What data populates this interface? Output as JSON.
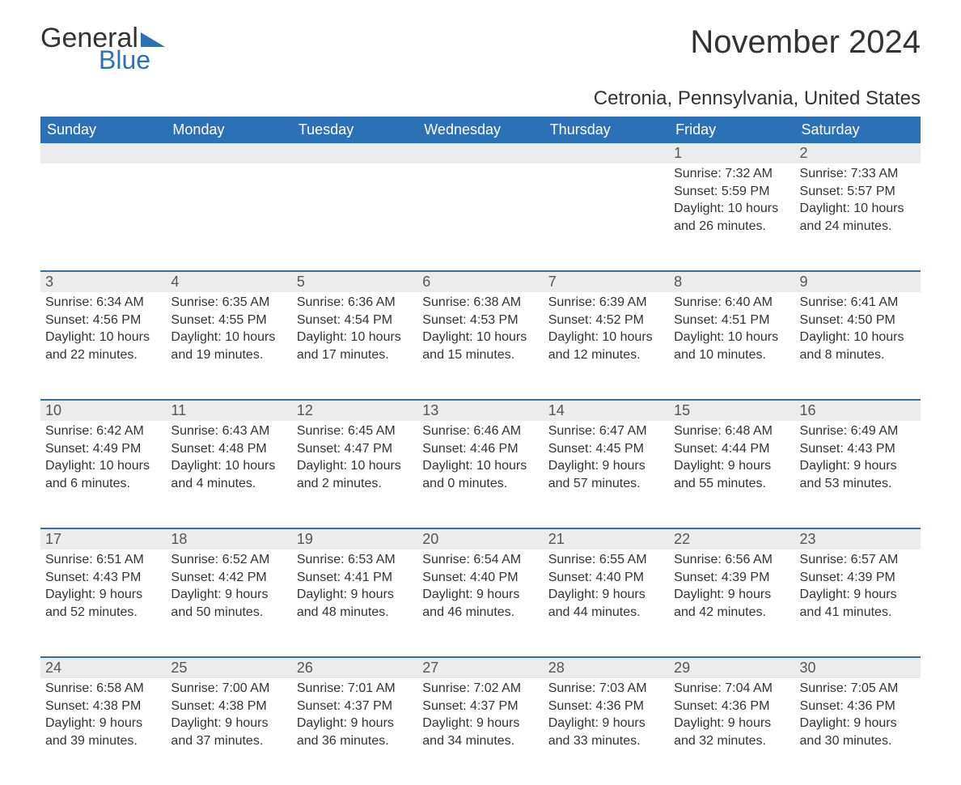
{
  "logo": {
    "text1": "General",
    "text2": "Blue",
    "tri_color": "#2a71b8"
  },
  "title": "November 2024",
  "location": "Cetronia, Pennsylvania, United States",
  "colors": {
    "header_bg": "#2a71b8",
    "header_text": "#ffffff",
    "daynum_bg": "#ececec",
    "text": "#333333",
    "border": "#2a71b8"
  },
  "font": {
    "family": "Arial",
    "title_size": 40,
    "location_size": 24,
    "header_size": 18,
    "body_size": 16
  },
  "day_names": [
    "Sunday",
    "Monday",
    "Tuesday",
    "Wednesday",
    "Thursday",
    "Friday",
    "Saturday"
  ],
  "weeks": [
    [
      {
        "empty": true
      },
      {
        "empty": true
      },
      {
        "empty": true
      },
      {
        "empty": true
      },
      {
        "empty": true
      },
      {
        "n": "1",
        "sunrise": "Sunrise: 7:32 AM",
        "sunset": "Sunset: 5:59 PM",
        "d1": "Daylight: 10 hours",
        "d2": "and 26 minutes."
      },
      {
        "n": "2",
        "sunrise": "Sunrise: 7:33 AM",
        "sunset": "Sunset: 5:57 PM",
        "d1": "Daylight: 10 hours",
        "d2": "and 24 minutes."
      }
    ],
    [
      {
        "n": "3",
        "sunrise": "Sunrise: 6:34 AM",
        "sunset": "Sunset: 4:56 PM",
        "d1": "Daylight: 10 hours",
        "d2": "and 22 minutes."
      },
      {
        "n": "4",
        "sunrise": "Sunrise: 6:35 AM",
        "sunset": "Sunset: 4:55 PM",
        "d1": "Daylight: 10 hours",
        "d2": "and 19 minutes."
      },
      {
        "n": "5",
        "sunrise": "Sunrise: 6:36 AM",
        "sunset": "Sunset: 4:54 PM",
        "d1": "Daylight: 10 hours",
        "d2": "and 17 minutes."
      },
      {
        "n": "6",
        "sunrise": "Sunrise: 6:38 AM",
        "sunset": "Sunset: 4:53 PM",
        "d1": "Daylight: 10 hours",
        "d2": "and 15 minutes."
      },
      {
        "n": "7",
        "sunrise": "Sunrise: 6:39 AM",
        "sunset": "Sunset: 4:52 PM",
        "d1": "Daylight: 10 hours",
        "d2": "and 12 minutes."
      },
      {
        "n": "8",
        "sunrise": "Sunrise: 6:40 AM",
        "sunset": "Sunset: 4:51 PM",
        "d1": "Daylight: 10 hours",
        "d2": "and 10 minutes."
      },
      {
        "n": "9",
        "sunrise": "Sunrise: 6:41 AM",
        "sunset": "Sunset: 4:50 PM",
        "d1": "Daylight: 10 hours",
        "d2": "and 8 minutes."
      }
    ],
    [
      {
        "n": "10",
        "sunrise": "Sunrise: 6:42 AM",
        "sunset": "Sunset: 4:49 PM",
        "d1": "Daylight: 10 hours",
        "d2": "and 6 minutes."
      },
      {
        "n": "11",
        "sunrise": "Sunrise: 6:43 AM",
        "sunset": "Sunset: 4:48 PM",
        "d1": "Daylight: 10 hours",
        "d2": "and 4 minutes."
      },
      {
        "n": "12",
        "sunrise": "Sunrise: 6:45 AM",
        "sunset": "Sunset: 4:47 PM",
        "d1": "Daylight: 10 hours",
        "d2": "and 2 minutes."
      },
      {
        "n": "13",
        "sunrise": "Sunrise: 6:46 AM",
        "sunset": "Sunset: 4:46 PM",
        "d1": "Daylight: 10 hours",
        "d2": "and 0 minutes."
      },
      {
        "n": "14",
        "sunrise": "Sunrise: 6:47 AM",
        "sunset": "Sunset: 4:45 PM",
        "d1": "Daylight: 9 hours",
        "d2": "and 57 minutes."
      },
      {
        "n": "15",
        "sunrise": "Sunrise: 6:48 AM",
        "sunset": "Sunset: 4:44 PM",
        "d1": "Daylight: 9 hours",
        "d2": "and 55 minutes."
      },
      {
        "n": "16",
        "sunrise": "Sunrise: 6:49 AM",
        "sunset": "Sunset: 4:43 PM",
        "d1": "Daylight: 9 hours",
        "d2": "and 53 minutes."
      }
    ],
    [
      {
        "n": "17",
        "sunrise": "Sunrise: 6:51 AM",
        "sunset": "Sunset: 4:43 PM",
        "d1": "Daylight: 9 hours",
        "d2": "and 52 minutes."
      },
      {
        "n": "18",
        "sunrise": "Sunrise: 6:52 AM",
        "sunset": "Sunset: 4:42 PM",
        "d1": "Daylight: 9 hours",
        "d2": "and 50 minutes."
      },
      {
        "n": "19",
        "sunrise": "Sunrise: 6:53 AM",
        "sunset": "Sunset: 4:41 PM",
        "d1": "Daylight: 9 hours",
        "d2": "and 48 minutes."
      },
      {
        "n": "20",
        "sunrise": "Sunrise: 6:54 AM",
        "sunset": "Sunset: 4:40 PM",
        "d1": "Daylight: 9 hours",
        "d2": "and 46 minutes."
      },
      {
        "n": "21",
        "sunrise": "Sunrise: 6:55 AM",
        "sunset": "Sunset: 4:40 PM",
        "d1": "Daylight: 9 hours",
        "d2": "and 44 minutes."
      },
      {
        "n": "22",
        "sunrise": "Sunrise: 6:56 AM",
        "sunset": "Sunset: 4:39 PM",
        "d1": "Daylight: 9 hours",
        "d2": "and 42 minutes."
      },
      {
        "n": "23",
        "sunrise": "Sunrise: 6:57 AM",
        "sunset": "Sunset: 4:39 PM",
        "d1": "Daylight: 9 hours",
        "d2": "and 41 minutes."
      }
    ],
    [
      {
        "n": "24",
        "sunrise": "Sunrise: 6:58 AM",
        "sunset": "Sunset: 4:38 PM",
        "d1": "Daylight: 9 hours",
        "d2": "and 39 minutes."
      },
      {
        "n": "25",
        "sunrise": "Sunrise: 7:00 AM",
        "sunset": "Sunset: 4:38 PM",
        "d1": "Daylight: 9 hours",
        "d2": "and 37 minutes."
      },
      {
        "n": "26",
        "sunrise": "Sunrise: 7:01 AM",
        "sunset": "Sunset: 4:37 PM",
        "d1": "Daylight: 9 hours",
        "d2": "and 36 minutes."
      },
      {
        "n": "27",
        "sunrise": "Sunrise: 7:02 AM",
        "sunset": "Sunset: 4:37 PM",
        "d1": "Daylight: 9 hours",
        "d2": "and 34 minutes."
      },
      {
        "n": "28",
        "sunrise": "Sunrise: 7:03 AM",
        "sunset": "Sunset: 4:36 PM",
        "d1": "Daylight: 9 hours",
        "d2": "and 33 minutes."
      },
      {
        "n": "29",
        "sunrise": "Sunrise: 7:04 AM",
        "sunset": "Sunset: 4:36 PM",
        "d1": "Daylight: 9 hours",
        "d2": "and 32 minutes."
      },
      {
        "n": "30",
        "sunrise": "Sunrise: 7:05 AM",
        "sunset": "Sunset: 4:36 PM",
        "d1": "Daylight: 9 hours",
        "d2": "and 30 minutes."
      }
    ]
  ]
}
